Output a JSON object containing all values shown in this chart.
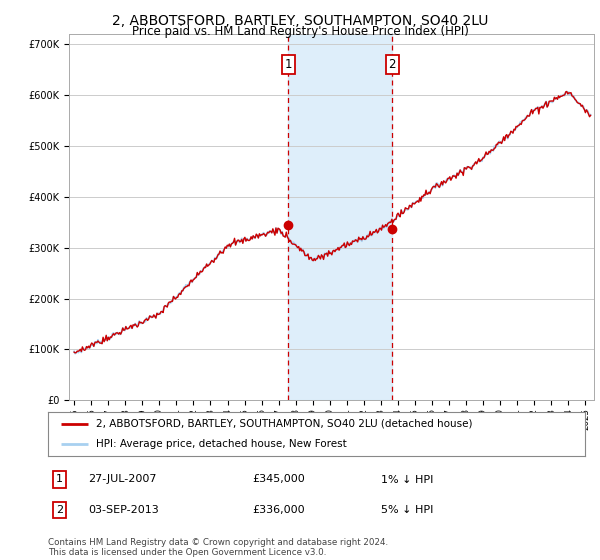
{
  "title": "2, ABBOTSFORD, BARTLEY, SOUTHAMPTON, SO40 2LU",
  "subtitle": "Price paid vs. HM Land Registry's House Price Index (HPI)",
  "ylabel_ticks": [
    "£0",
    "£100K",
    "£200K",
    "£300K",
    "£400K",
    "£500K",
    "£600K",
    "£700K"
  ],
  "ylim": [
    0,
    720000
  ],
  "xlim_start": 1994.7,
  "xlim_end": 2025.5,
  "hpi_color": "#a8d0f0",
  "price_color": "#cc0000",
  "marker1_date": 2007.57,
  "marker2_date": 2013.67,
  "marker1_price": 345000,
  "marker2_price": 336000,
  "shade_color": "#d0e8f8",
  "vline_color": "#cc0000",
  "legend_label1": "2, ABBOTSFORD, BARTLEY, SOUTHAMPTON, SO40 2LU (detached house)",
  "legend_label2": "HPI: Average price, detached house, New Forest",
  "table_row1": [
    "1",
    "27-JUL-2007",
    "£345,000",
    "1% ↓ HPI"
  ],
  "table_row2": [
    "2",
    "03-SEP-2013",
    "£336,000",
    "5% ↓ HPI"
  ],
  "footer": "Contains HM Land Registry data © Crown copyright and database right 2024.\nThis data is licensed under the Open Government Licence v3.0.",
  "bg_color": "#ffffff",
  "grid_color": "#cccccc",
  "title_fontsize": 10,
  "subtitle_fontsize": 8.5,
  "axis_fontsize": 7
}
